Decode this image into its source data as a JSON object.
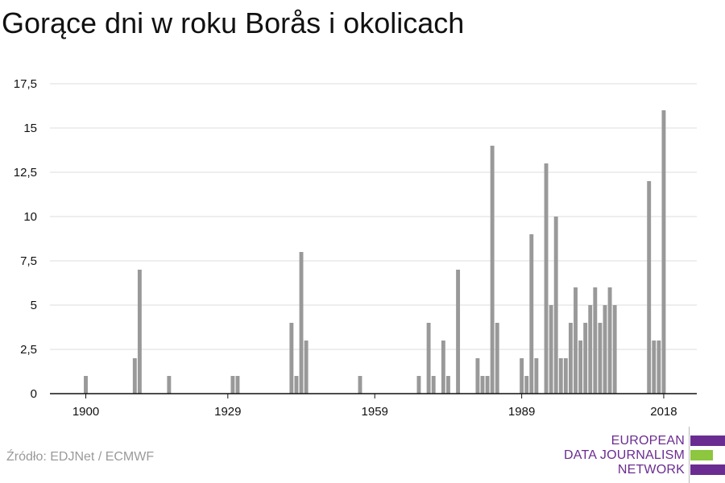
{
  "title": "Gorące dni w roku Borås i okolicach",
  "source": "Źródło: EDJNet / ECMWF",
  "logo": {
    "lines": [
      "EUROPEAN",
      "DATA JOURNALISM",
      "NETWORK"
    ],
    "text_color": "#6b2c91",
    "stripe_colors": [
      "#6b2c91",
      "#8dc63f",
      "#6b2c91"
    ]
  },
  "chart_data": {
    "type": "bar",
    "title": "Gorące dni w roku Borås i okolicach",
    "xlabel": "",
    "ylabel": "",
    "xlim": [
      1900,
      2018
    ],
    "ylim": [
      0,
      17.5
    ],
    "x_ticks": [
      1900,
      1929,
      1959,
      1989,
      2018
    ],
    "y_ticks": [
      0,
      2.5,
      5,
      7.5,
      10,
      12.5,
      15,
      17.5
    ],
    "y_tick_labels": [
      "0",
      "2,5",
      "5",
      "7,5",
      "10",
      "12,5",
      "15",
      "17,5"
    ],
    "grid": "horizontal",
    "bar_color": "#999999",
    "x": [
      1900,
      1910,
      1911,
      1917,
      1930,
      1931,
      1942,
      1943,
      1944,
      1945,
      1956,
      1968,
      1970,
      1971,
      1973,
      1974,
      1976,
      1980,
      1981,
      1982,
      1983,
      1984,
      1989,
      1990,
      1991,
      1992,
      1994,
      1995,
      1996,
      1997,
      1998,
      1999,
      2000,
      2001,
      2002,
      2003,
      2004,
      2005,
      2006,
      2007,
      2008,
      2015,
      2016,
      2017,
      2018
    ],
    "values": [
      1,
      2,
      7,
      1,
      1,
      1,
      4,
      1,
      8,
      3,
      1,
      1,
      4,
      1,
      3,
      1,
      7,
      2,
      1,
      1,
      14,
      4,
      2,
      1,
      9,
      2,
      13,
      5,
      10,
      2,
      2,
      4,
      6,
      3,
      4,
      5,
      6,
      4,
      5,
      6,
      5,
      12,
      3,
      3,
      16
    ]
  }
}
